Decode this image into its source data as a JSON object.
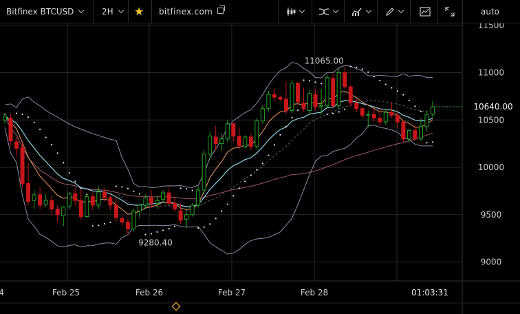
{
  "toolbar": {
    "symbol": "Bitfinex BTCUSD",
    "interval": "2H",
    "favorite_icon": "star-icon",
    "site": "bitfinex.com",
    "chart_style_icon": "candles-icon",
    "indicators_icon": "indicators-icon",
    "compare_icon": "compare-icon",
    "drawing_icon": "pencil-icon",
    "snapshot_icon": "snapshot-icon",
    "fullscreen_icon": "fullscreen-icon",
    "scale_mode": "auto"
  },
  "colors": {
    "up": "#26a626",
    "down": "#c8171b",
    "ma_fast": "#d9905c",
    "ma_slow": "#8fd4e6",
    "ma_long": "#a0576a",
    "bands": "#8c8ca6",
    "grid": "#2a2a2a",
    "text": "#cccccc"
  },
  "price_axis": {
    "ticks": [
      "11500",
      "11000",
      "10500",
      "10000",
      "9500",
      "9000"
    ],
    "last_price": "10640.00",
    "min": 8800,
    "max": 11520
  },
  "time_axis": {
    "labels": [
      "4",
      "Feb 25",
      "Feb 26",
      "Feb 27",
      "Feb 28"
    ],
    "countdown": "01:03:31"
  },
  "annotations": {
    "high": "11065.00",
    "low": "9280.40"
  },
  "chart_data": {
    "type": "candlestick",
    "ohlc": [
      [
        10500,
        10560,
        10460,
        10540
      ],
      [
        10520,
        10570,
        10230,
        10280
      ],
      [
        10270,
        10320,
        10110,
        10200
      ],
      [
        10210,
        10260,
        9780,
        9830
      ],
      [
        9830,
        10050,
        9600,
        9640
      ],
      [
        9650,
        9760,
        9560,
        9710
      ],
      [
        9710,
        9790,
        9550,
        9600
      ],
      [
        9610,
        9720,
        9580,
        9650
      ],
      [
        9650,
        9700,
        9500,
        9560
      ],
      [
        9560,
        9600,
        9420,
        9500
      ],
      [
        9490,
        9590,
        9380,
        9580
      ],
      [
        9590,
        9740,
        9560,
        9720
      ],
      [
        9720,
        9780,
        9600,
        9650
      ],
      [
        9650,
        9760,
        9440,
        9480
      ],
      [
        9480,
        9710,
        9460,
        9690
      ],
      [
        9690,
        9730,
        9550,
        9600
      ],
      [
        9600,
        9800,
        9560,
        9740
      ],
      [
        9740,
        9780,
        9640,
        9680
      ],
      [
        9680,
        9710,
        9550,
        9600
      ],
      [
        9600,
        9690,
        9430,
        9470
      ],
      [
        9460,
        9500,
        9380,
        9420
      ],
      [
        9420,
        9460,
        9290,
        9350
      ],
      [
        9350,
        9560,
        9320,
        9540
      ],
      [
        9540,
        9620,
        9460,
        9600
      ],
      [
        9600,
        9710,
        9560,
        9680
      ],
      [
        9680,
        9760,
        9570,
        9620
      ],
      [
        9620,
        9700,
        9560,
        9650
      ],
      [
        9660,
        9760,
        9620,
        9730
      ],
      [
        9730,
        9780,
        9600,
        9620
      ],
      [
        9620,
        9680,
        9530,
        9560
      ],
      [
        9540,
        9620,
        9400,
        9440
      ],
      [
        9450,
        9560,
        9360,
        9500
      ],
      [
        9500,
        9620,
        9480,
        9600
      ],
      [
        9600,
        9800,
        9580,
        9760
      ],
      [
        9760,
        10180,
        9720,
        10140
      ],
      [
        10140,
        10380,
        10090,
        10330
      ],
      [
        10320,
        10440,
        10180,
        10250
      ],
      [
        10250,
        10360,
        10180,
        10300
      ],
      [
        10300,
        10500,
        10270,
        10460
      ],
      [
        10460,
        10470,
        10270,
        10330
      ],
      [
        10330,
        10420,
        10190,
        10230
      ],
      [
        10220,
        10340,
        10200,
        10320
      ],
      [
        10320,
        10360,
        10180,
        10220
      ],
      [
        10220,
        10520,
        10190,
        10490
      ],
      [
        10490,
        10660,
        10460,
        10620
      ],
      [
        10620,
        10810,
        10590,
        10770
      ],
      [
        10770,
        10830,
        10700,
        10740
      ],
      [
        10740,
        10760,
        10700,
        10720
      ],
      [
        10720,
        10900,
        10560,
        10600
      ],
      [
        10600,
        10920,
        10570,
        10890
      ],
      [
        10890,
        10900,
        10680,
        10690
      ],
      [
        10680,
        10840,
        10590,
        10620
      ],
      [
        10600,
        10820,
        10560,
        10780
      ],
      [
        10770,
        10830,
        10600,
        10640
      ],
      [
        10640,
        10830,
        10560,
        10650
      ],
      [
        10650,
        10980,
        10620,
        10950
      ],
      [
        10940,
        10990,
        10640,
        10650
      ],
      [
        10650,
        11040,
        10620,
        11000
      ],
      [
        11000,
        11065,
        10830,
        10850
      ],
      [
        10850,
        10870,
        10640,
        10680
      ],
      [
        10680,
        10720,
        10580,
        10620
      ],
      [
        10620,
        10640,
        10510,
        10550
      ],
      [
        10550,
        10600,
        10420,
        10560
      ],
      [
        10560,
        10620,
        10480,
        10520
      ],
      [
        10520,
        10640,
        10440,
        10480
      ],
      [
        10480,
        10620,
        10450,
        10580
      ],
      [
        10580,
        10690,
        10520,
        10550
      ],
      [
        10550,
        10600,
        10410,
        10480
      ],
      [
        10480,
        10500,
        10270,
        10300
      ],
      [
        10300,
        10410,
        10260,
        10390
      ],
      [
        10390,
        10440,
        10280,
        10300
      ],
      [
        10300,
        10520,
        10280,
        10430
      ],
      [
        10430,
        10600,
        10380,
        10560
      ],
      [
        10560,
        10700,
        10520,
        10640
      ]
    ]
  }
}
